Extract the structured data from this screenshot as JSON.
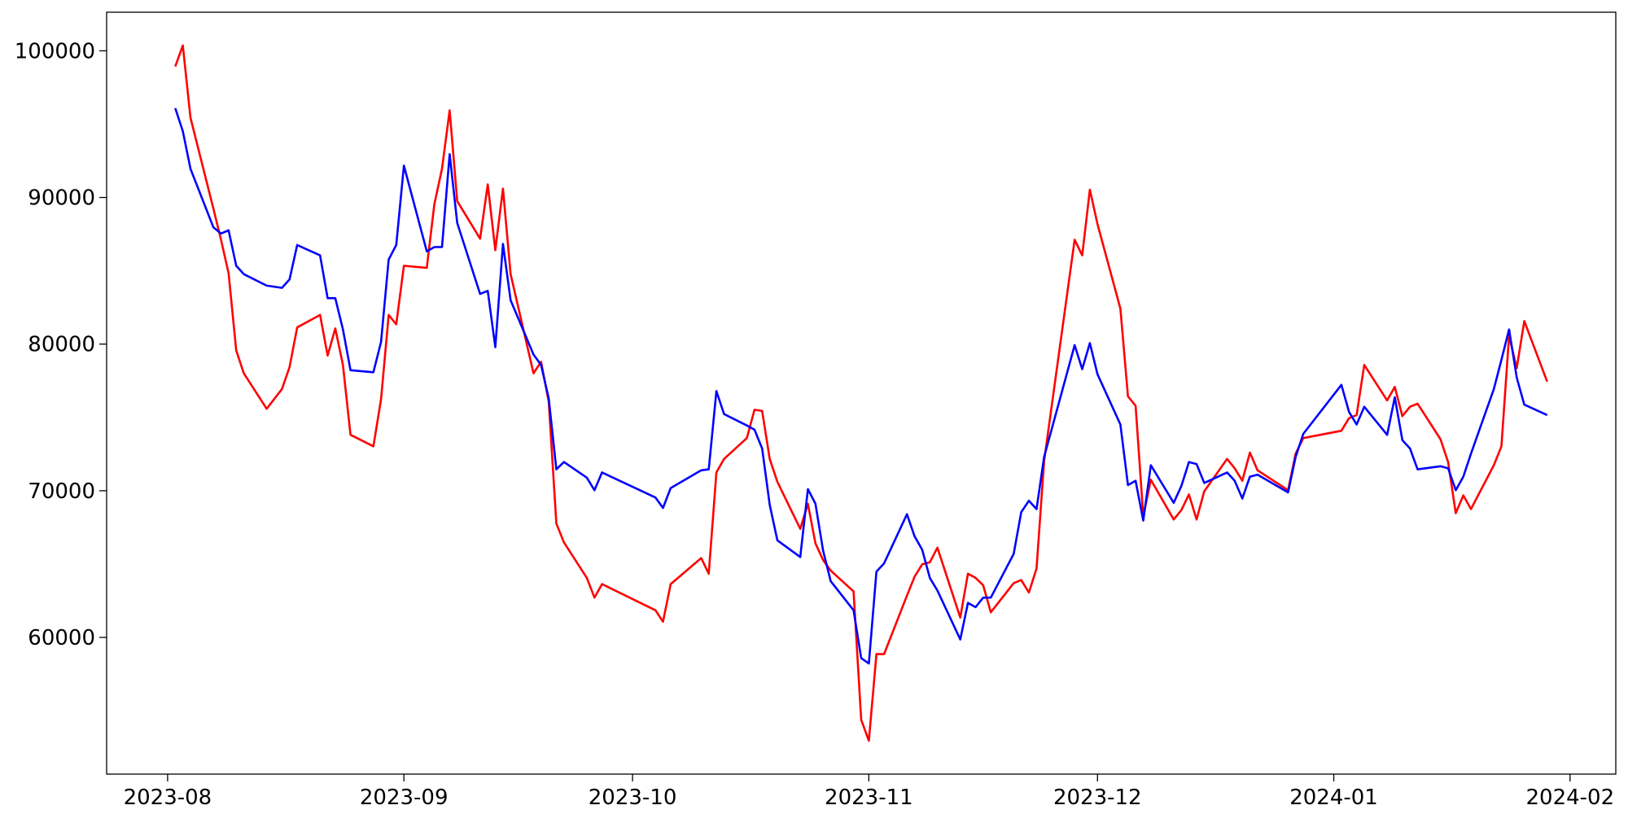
{
  "chart_data": {
    "type": "line",
    "x": [
      "2023-08-02",
      "2023-08-03",
      "2023-08-04",
      "2023-08-07",
      "2023-08-08",
      "2023-08-09",
      "2023-08-10",
      "2023-08-11",
      "2023-08-14",
      "2023-08-16",
      "2023-08-17",
      "2023-08-18",
      "2023-08-21",
      "2023-08-22",
      "2023-08-23",
      "2023-08-24",
      "2023-08-25",
      "2023-08-28",
      "2023-08-29",
      "2023-08-30",
      "2023-08-31",
      "2023-09-01",
      "2023-09-04",
      "2023-09-05",
      "2023-09-06",
      "2023-09-07",
      "2023-09-08",
      "2023-09-11",
      "2023-09-12",
      "2023-09-13",
      "2023-09-14",
      "2023-09-15",
      "2023-09-18",
      "2023-09-19",
      "2023-09-20",
      "2023-09-21",
      "2023-09-22",
      "2023-09-25",
      "2023-09-26",
      "2023-09-27",
      "2023-10-04",
      "2023-10-05",
      "2023-10-06",
      "2023-10-10",
      "2023-10-11",
      "2023-10-12",
      "2023-10-13",
      "2023-10-16",
      "2023-10-17",
      "2023-10-18",
      "2023-10-19",
      "2023-10-20",
      "2023-10-23",
      "2023-10-24",
      "2023-10-25",
      "2023-10-26",
      "2023-10-27",
      "2023-10-30",
      "2023-10-31",
      "2023-11-01",
      "2023-11-02",
      "2023-11-03",
      "2023-11-06",
      "2023-11-07",
      "2023-11-08",
      "2023-11-09",
      "2023-11-10",
      "2023-11-13",
      "2023-11-14",
      "2023-11-15",
      "2023-11-16",
      "2023-11-17",
      "2023-11-20",
      "2023-11-21",
      "2023-11-22",
      "2023-11-23",
      "2023-11-24",
      "2023-11-28",
      "2023-11-29",
      "2023-11-30",
      "2023-12-01",
      "2023-12-04",
      "2023-12-05",
      "2023-12-06",
      "2023-12-07",
      "2023-12-08",
      "2023-12-11",
      "2023-12-12",
      "2023-12-13",
      "2023-12-14",
      "2023-12-15",
      "2023-12-18",
      "2023-12-19",
      "2023-12-20",
      "2023-12-21",
      "2023-12-22",
      "2023-12-26",
      "2023-12-27",
      "2023-12-28",
      "2024-01-02",
      "2024-01-03",
      "2024-01-04",
      "2024-01-05",
      "2024-01-08",
      "2024-01-09",
      "2024-01-10",
      "2024-01-11",
      "2024-01-12",
      "2024-01-15",
      "2024-01-16",
      "2024-01-17",
      "2024-01-18",
      "2024-01-19",
      "2024-01-22",
      "2024-01-23",
      "2024-01-24",
      "2024-01-25",
      "2024-01-26",
      "2024-01-29"
    ],
    "series": [
      {
        "color": "#ff0000",
        "values": [
          98930,
          100360,
          95440,
          89250,
          87120,
          84840,
          79570,
          78010,
          75590,
          76940,
          78430,
          81140,
          81990,
          79220,
          81070,
          78580,
          73810,
          73030,
          76230,
          81990,
          81350,
          85340,
          85200,
          89540,
          91960,
          95940,
          89750,
          87190,
          90890,
          86410,
          90600,
          84770,
          78010,
          78790,
          76090,
          67760,
          66480,
          64060,
          62710,
          63630,
          61850,
          61070,
          63630,
          65410,
          64340,
          71250,
          72170,
          73590,
          75520,
          75440,
          72170,
          70610,
          67400,
          69110,
          66410,
          65270,
          64560,
          63130,
          54380,
          52950,
          58860,
          58860,
          62850,
          64130,
          64980,
          65120,
          66120,
          61350,
          64340,
          64060,
          63560,
          61710,
          63700,
          63910,
          63060,
          64700,
          72030,
          87120,
          86050,
          90530,
          88180,
          82420,
          76440,
          75800,
          68260,
          70750,
          68040,
          68680,
          69750,
          68040,
          69960,
          72170,
          71530,
          70680,
          72600,
          71390,
          70040,
          72530,
          73590,
          74090,
          74950,
          75160,
          78580,
          76160,
          77080,
          75090,
          75730,
          75940,
          73520,
          71960,
          68470,
          69680,
          68750,
          71740,
          73030,
          80570,
          78360,
          81570,
          77440
        ]
      },
      {
        "color": "#0000ff",
        "values": [
          96090,
          94520,
          91960,
          87970,
          87540,
          87760,
          85340,
          84770,
          83990,
          83840,
          84410,
          86760,
          86050,
          83130,
          83130,
          81000,
          78220,
          78080,
          80140,
          85770,
          86760,
          92170,
          86330,
          86620,
          86620,
          92950,
          88260,
          83420,
          83630,
          79790,
          86830,
          82990,
          79290,
          78580,
          76300,
          71460,
          71960,
          70890,
          70040,
          71250,
          69540,
          68830,
          70180,
          71390,
          71460,
          76800,
          75230,
          74450,
          74160,
          72880,
          69040,
          66620,
          65480,
          70110,
          69110,
          65910,
          63840,
          61850,
          58580,
          58220,
          64480,
          65050,
          68400,
          66900,
          65980,
          64060,
          63200,
          59860,
          62350,
          62060,
          62710,
          62710,
          65690,
          68540,
          69320,
          68750,
          72310,
          79930,
          78290,
          80070,
          77940,
          74520,
          70390,
          70680,
          67970,
          71740,
          69180,
          70320,
          71960,
          71820,
          70530,
          71250,
          70680,
          69470,
          70960,
          71100,
          69890,
          72310,
          73880,
          77220,
          75370,
          74520,
          75730,
          73810,
          76370,
          73450,
          72880,
          71460,
          71670,
          71530,
          70040,
          70960,
          72530,
          76940,
          78930,
          81000,
          77720,
          75870,
          75160
        ]
      }
    ],
    "xlim": [
      "2023-07-24",
      "2024-02-07"
    ],
    "xticks": [
      {
        "value": "2023-08-01",
        "label": "2023-08"
      },
      {
        "value": "2023-09-01",
        "label": "2023-09"
      },
      {
        "value": "2023-10-01",
        "label": "2023-10"
      },
      {
        "value": "2023-11-01",
        "label": "2023-11"
      },
      {
        "value": "2023-12-01",
        "label": "2023-12"
      },
      {
        "value": "2024-01-01",
        "label": "2024-01"
      },
      {
        "value": "2024-02-01",
        "label": "2024-02"
      }
    ],
    "ylim": [
      50676,
      102633
    ],
    "yticks": [
      60000,
      70000,
      80000,
      90000,
      100000
    ],
    "grid": false
  }
}
